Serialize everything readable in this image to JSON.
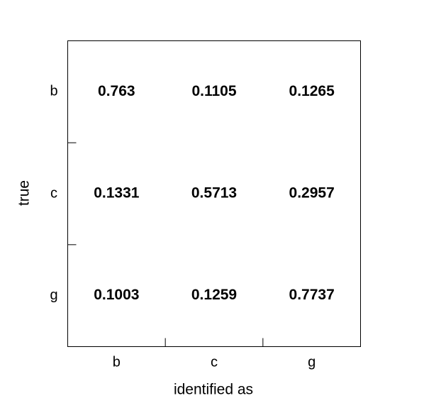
{
  "chart_data": {
    "type": "matrix",
    "x_label": "identified as",
    "y_label": "true",
    "x_categories": [
      "b",
      "c",
      "g"
    ],
    "y_categories": [
      "b",
      "c",
      "g"
    ],
    "values": [
      [
        0.763,
        0.1105,
        0.1265
      ],
      [
        0.1331,
        0.5713,
        0.2957
      ],
      [
        0.1003,
        0.1259,
        0.7737
      ]
    ]
  }
}
